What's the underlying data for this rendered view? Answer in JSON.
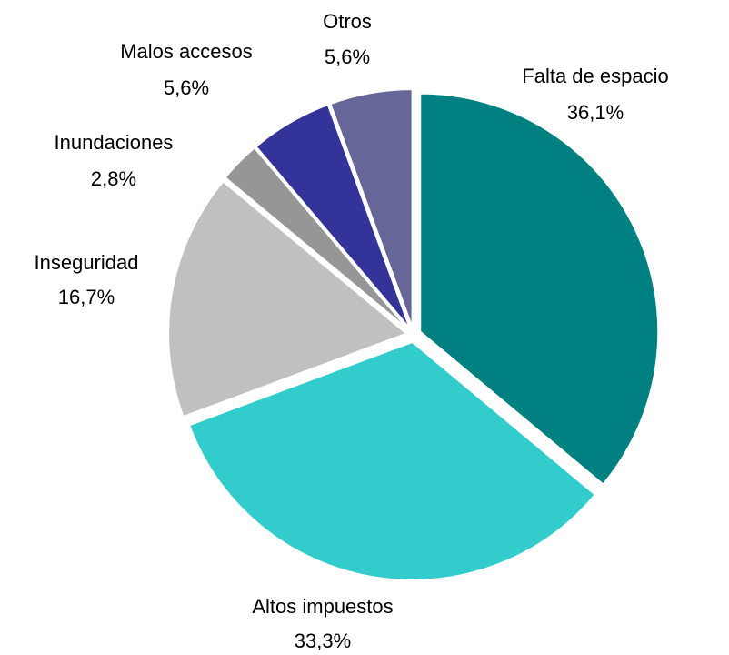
{
  "chart_data": {
    "type": "pie",
    "categories": [
      "Falta de espacio",
      "Altos impuestos",
      "Inseguridad",
      "Inundaciones",
      "Malos accesos",
      "Otros"
    ],
    "values": [
      36.1,
      33.3,
      16.7,
      2.8,
      5.6,
      5.6
    ],
    "value_labels": [
      "36,1%",
      "33,3%",
      "16,7%",
      "2,8%",
      "5,6%",
      "5,6%"
    ],
    "colors": [
      "#008080",
      "#33cccc",
      "#c0c0c0",
      "#969696",
      "#333399",
      "#666699"
    ]
  }
}
